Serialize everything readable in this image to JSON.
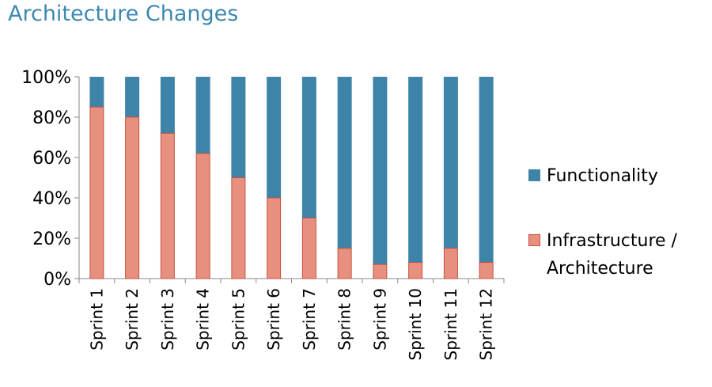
{
  "title": "Architecture Changes",
  "colors": {
    "functionality": "#3d84a8",
    "infrastructure": "#e8907f",
    "infrastructure_border": "#c9503f",
    "axis": "#8a8a8a",
    "title": "#3b88b1"
  },
  "chart_data": {
    "type": "bar",
    "stacked": true,
    "percent": true,
    "categories": [
      "Sprint 1",
      "Sprint 2",
      "Sprint 3",
      "Sprint 4",
      "Sprint 5",
      "Sprint 6",
      "Sprint 7",
      "Sprint 8",
      "Sprint 9",
      "Sprint 10",
      "Sprint 11",
      "Sprint 12"
    ],
    "series": [
      {
        "name": "Infrastructure / Architecture",
        "values": [
          85,
          80,
          72,
          62,
          50,
          40,
          30,
          15,
          7,
          8,
          15,
          8
        ]
      },
      {
        "name": "Functionality",
        "values": [
          15,
          20,
          28,
          38,
          50,
          60,
          70,
          85,
          93,
          92,
          85,
          92
        ]
      }
    ],
    "ylim": [
      0,
      100
    ],
    "yticks": [
      "0%",
      "20%",
      "40%",
      "60%",
      "80%",
      "100%"
    ],
    "legend": "right",
    "grid": false
  }
}
